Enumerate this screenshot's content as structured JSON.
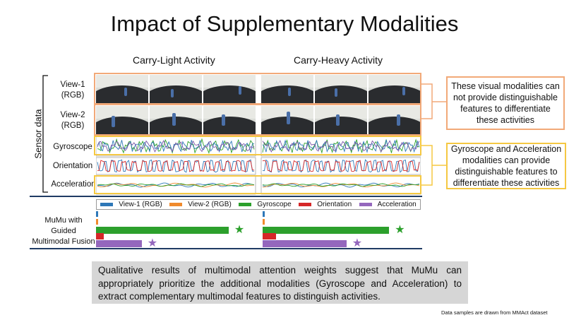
{
  "title": "Impact of Supplementary Modalities",
  "columns": [
    "Carry-Light Activity",
    "Carry-Heavy Activity"
  ],
  "sensor_label": "Sensor data",
  "rows": [
    {
      "line1": "View-1",
      "line2": "(RGB)"
    },
    {
      "line1": "View-2",
      "line2": "(RGB)"
    },
    {
      "line1": "Gyroscope",
      "line2": ""
    },
    {
      "line1": "Orientation",
      "line2": ""
    },
    {
      "line1": "Acceleration",
      "line2": ""
    }
  ],
  "callouts": {
    "visual": "These visual modalities can not provide distinguishable features to differentiate these activities",
    "sensor": "Gyroscope and Acceleration modalities can provide distinguishable features to differentiate these activities"
  },
  "legend": [
    {
      "label": "View-1 (RGB)",
      "color": "#2e78b8"
    },
    {
      "label": "View-2 (RGB)",
      "color": "#f08a2c"
    },
    {
      "label": "Gyroscope",
      "color": "#2ca02c"
    },
    {
      "label": "Orientation",
      "color": "#d62728"
    },
    {
      "label": "Acceleration",
      "color": "#9467bd"
    }
  ],
  "fusion_label": [
    "MuMu with",
    "Guided",
    "Multimodal Fusion"
  ],
  "attention": [
    {
      "activity": "Carry-Light Activity",
      "weights": [
        0.01,
        0.01,
        0.87,
        0.05,
        0.3
      ],
      "starred": [
        "Gyroscope",
        "Acceleration"
      ]
    },
    {
      "activity": "Carry-Heavy Activity",
      "weights": [
        0.01,
        0.01,
        0.83,
        0.09,
        0.55
      ],
      "starred": [
        "Gyroscope",
        "Acceleration"
      ]
    }
  ],
  "star_glyph": "★",
  "summary": "Qualitative results of multimodal attention weights suggest that MuMu can appropriately prioritize the additional modalities (Gyroscope and Acceleration) to extract complementary multimodal features to distinguish activities.",
  "footnote": "Data samples are drawn from MMAct dataset",
  "colors": {
    "visual_box": "#f2a978",
    "sensor_box": "#f5c842",
    "axis": "#1f3b64"
  }
}
